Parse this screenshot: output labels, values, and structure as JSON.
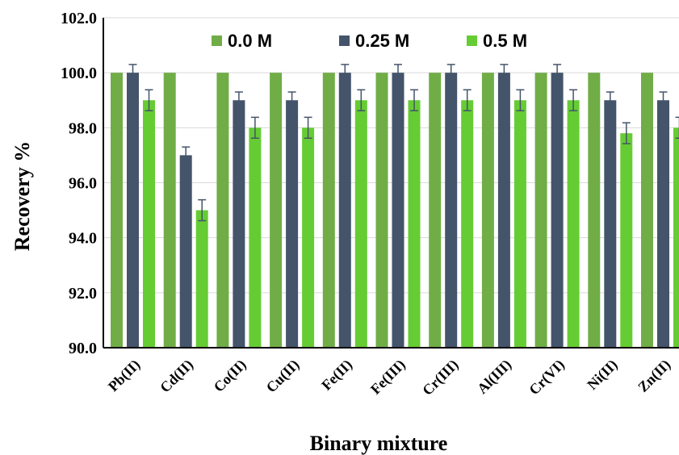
{
  "chart_data": {
    "type": "bar",
    "title": "",
    "xlabel": "Binary mixture",
    "ylabel": "Recovery %",
    "ylim": [
      90.0,
      102.0
    ],
    "yticks": [
      "90.0",
      "92.0",
      "94.0",
      "96.0",
      "98.0",
      "100.0",
      "102.0"
    ],
    "grid": true,
    "legend_position": "top",
    "categories": [
      "Pb(II)",
      "Cd(II)",
      "Co(II)",
      "Cu(II)",
      "Fe(II)",
      "Fe(III)",
      "Cr(III)",
      "Al(III)",
      "Cr(VI)",
      "Ni(II)",
      "Zn(II)"
    ],
    "series": [
      {
        "name": "0.0 M",
        "color": "#70AD47",
        "values": [
          100.0,
          100.0,
          100.0,
          100.0,
          100.0,
          100.0,
          100.0,
          100.0,
          100.0,
          100.0,
          100.0
        ],
        "errors": [
          0,
          0,
          0,
          0,
          0,
          0,
          0,
          0,
          0,
          0,
          0
        ]
      },
      {
        "name": "0.25 M",
        "color": "#44546A",
        "values": [
          100.0,
          97.0,
          99.0,
          99.0,
          100.0,
          100.0,
          100.0,
          100.0,
          100.0,
          99.0,
          99.0
        ],
        "errors": [
          0.3,
          0.3,
          0.3,
          0.3,
          0.3,
          0.3,
          0.3,
          0.3,
          0.3,
          0.3,
          0.3
        ]
      },
      {
        "name": "0.5 M",
        "color": "#66CC33",
        "values": [
          99.0,
          95.0,
          98.0,
          98.0,
          99.0,
          99.0,
          99.0,
          99.0,
          99.0,
          97.8,
          98.0
        ],
        "errors": [
          0.38,
          0.38,
          0.38,
          0.38,
          0.38,
          0.38,
          0.38,
          0.38,
          0.38,
          0.38,
          0.38
        ]
      }
    ],
    "error_bar_color": "#44546A"
  }
}
